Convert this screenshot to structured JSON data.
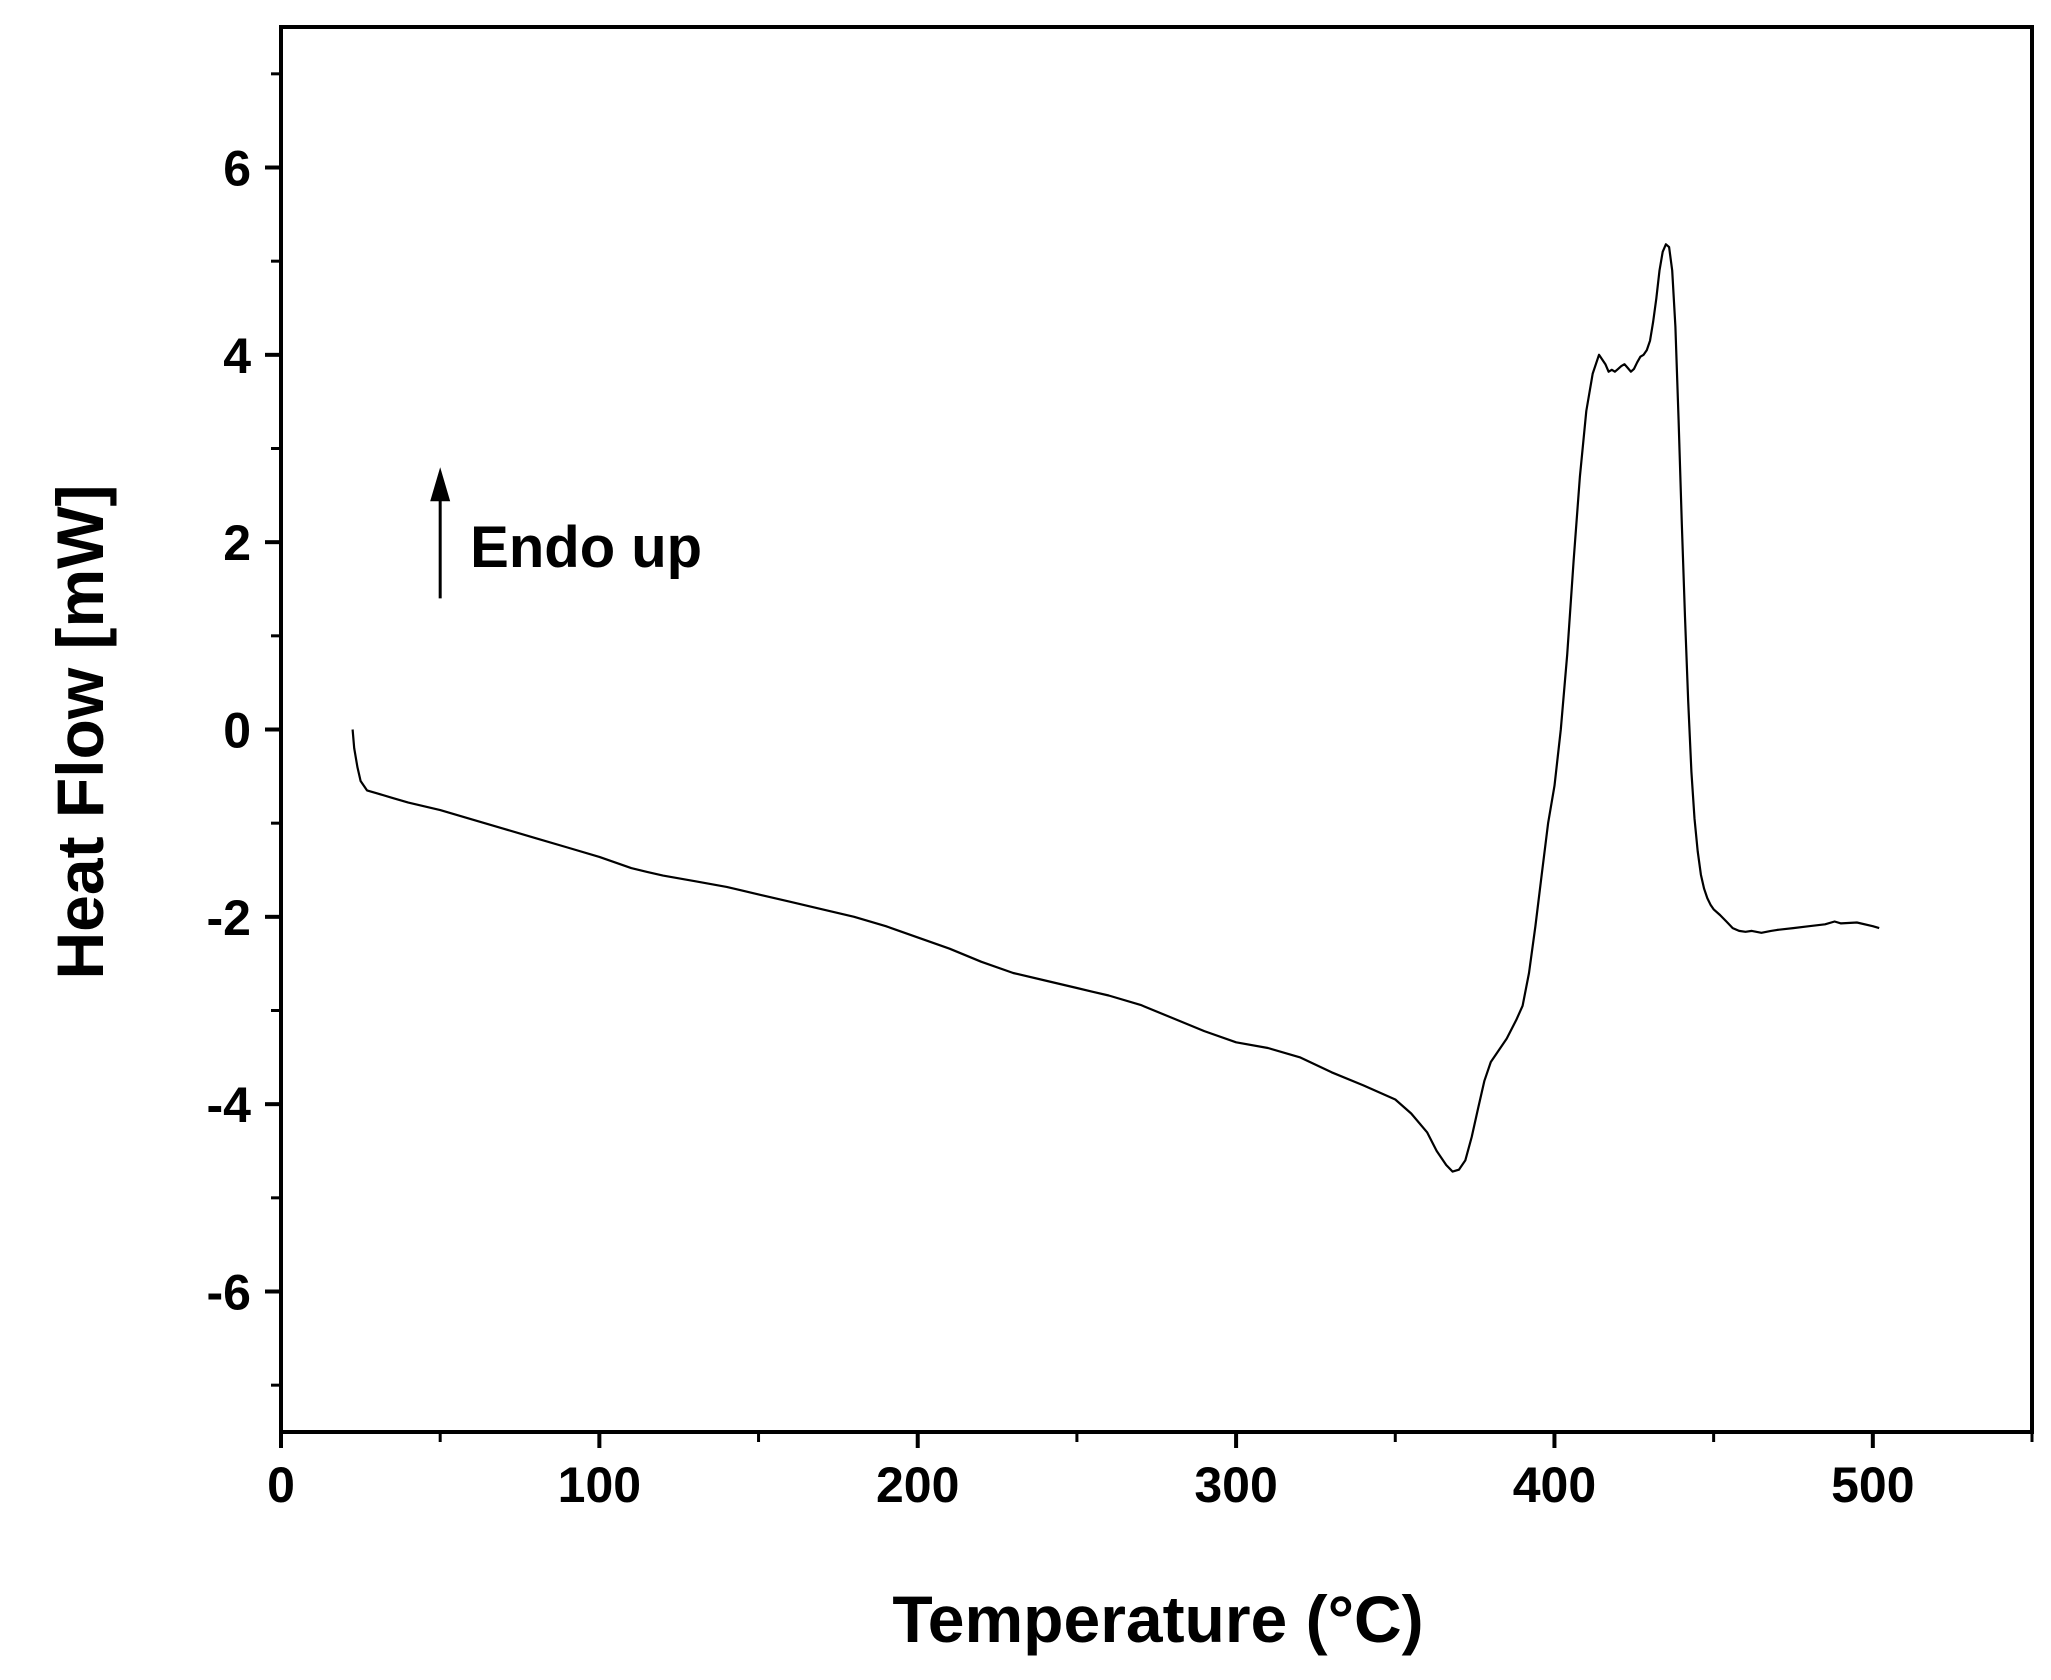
{
  "chart_data": {
    "type": "line",
    "title": "",
    "xlabel": "Temperature (°C)",
    "ylabel": "Heat Flow [mW]",
    "xlim": [
      0,
      550
    ],
    "ylim": [
      -7.5,
      7.5
    ],
    "x_ticks": [
      0,
      100,
      200,
      300,
      400,
      500
    ],
    "x_tick_labels": [
      "0",
      "100",
      "200",
      "300",
      "400",
      "500"
    ],
    "x_minor_ticks": [
      50,
      150,
      250,
      350,
      450,
      550
    ],
    "y_ticks": [
      -6,
      -4,
      -2,
      0,
      2,
      4,
      6
    ],
    "y_tick_labels": [
      "-6",
      "-4",
      "-2",
      "0",
      "2",
      "4",
      "6"
    ],
    "y_minor_ticks": [
      -7,
      -5,
      -3,
      -1,
      1,
      3,
      5,
      7
    ],
    "grid": false,
    "legend": "none",
    "line_color": "#000000",
    "annotation": {
      "text": "Endo up",
      "arrow_x": 50,
      "arrow_from_y": 1.4,
      "arrow_to_y": 2.8
    },
    "series": [
      {
        "x": [
          22.5,
          23,
          24,
          25,
          27,
          30,
          35,
          40,
          50,
          60,
          70,
          80,
          90,
          100,
          110,
          115,
          120,
          130,
          140,
          150,
          160,
          170,
          180,
          190,
          200,
          210,
          220,
          230,
          240,
          250,
          255,
          260,
          270,
          280,
          290,
          300,
          310,
          320,
          330,
          340,
          350,
          355,
          360,
          363,
          366,
          368,
          370,
          372,
          374,
          376,
          378,
          380,
          382,
          385,
          388,
          390,
          392,
          394,
          396,
          398,
          400,
          402,
          404,
          406,
          408,
          410,
          412,
          414,
          416,
          417,
          418,
          419,
          420,
          421,
          422,
          423,
          424,
          425,
          426,
          427,
          428,
          429,
          430,
          431,
          432,
          433,
          434,
          435,
          436,
          437,
          438,
          439,
          440,
          441,
          442,
          443,
          444,
          445,
          446,
          447,
          448,
          449,
          450,
          452,
          454,
          456,
          458,
          460,
          462,
          465,
          468,
          470,
          475,
          480,
          485,
          488,
          490,
          495,
          500,
          502
        ],
        "y": [
          0.0,
          -0.2,
          -0.4,
          -0.55,
          -0.65,
          -0.68,
          -0.73,
          -0.78,
          -0.86,
          -0.96,
          -1.06,
          -1.16,
          -1.26,
          -1.36,
          -1.48,
          -1.52,
          -1.56,
          -1.62,
          -1.68,
          -1.76,
          -1.84,
          -1.92,
          -2.0,
          -2.1,
          -2.22,
          -2.34,
          -2.48,
          -2.6,
          -2.68,
          -2.76,
          -2.8,
          -2.84,
          -2.94,
          -3.08,
          -3.22,
          -3.34,
          -3.4,
          -3.5,
          -3.66,
          -3.8,
          -3.95,
          -4.1,
          -4.3,
          -4.5,
          -4.65,
          -4.72,
          -4.7,
          -4.6,
          -4.35,
          -4.05,
          -3.75,
          -3.55,
          -3.45,
          -3.3,
          -3.1,
          -2.95,
          -2.6,
          -2.1,
          -1.55,
          -1.0,
          -0.6,
          0.0,
          0.8,
          1.8,
          2.7,
          3.4,
          3.8,
          4.0,
          3.9,
          3.82,
          3.84,
          3.82,
          3.85,
          3.88,
          3.9,
          3.86,
          3.82,
          3.85,
          3.92,
          3.98,
          4.0,
          4.05,
          4.15,
          4.35,
          4.6,
          4.9,
          5.1,
          5.18,
          5.15,
          4.9,
          4.3,
          3.3,
          2.2,
          1.2,
          0.3,
          -0.45,
          -0.95,
          -1.3,
          -1.55,
          -1.7,
          -1.8,
          -1.87,
          -1.92,
          -1.98,
          -2.05,
          -2.12,
          -2.15,
          -2.16,
          -2.15,
          -2.17,
          -2.15,
          -2.14,
          -2.12,
          -2.1,
          -2.08,
          -2.05,
          -2.07,
          -2.06,
          -2.1,
          -2.12
        ]
      }
    ]
  }
}
